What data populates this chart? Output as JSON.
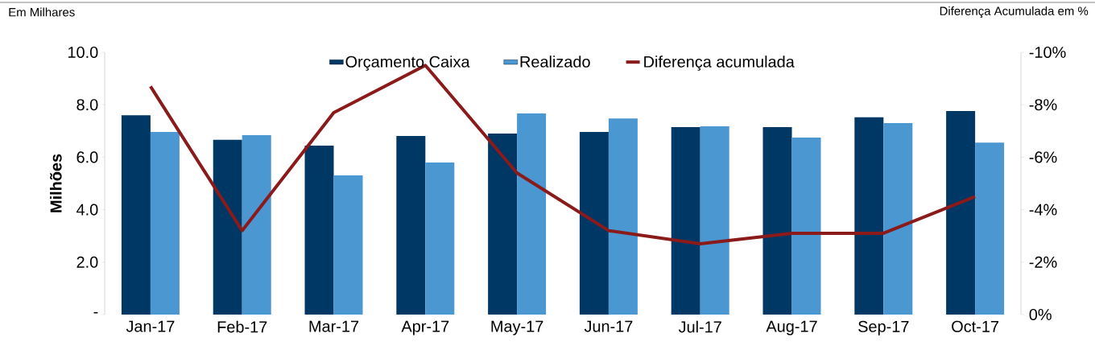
{
  "chart_data": {
    "type": "bar",
    "categories": [
      "Jan-17",
      "Feb-17",
      "Mar-17",
      "Apr-17",
      "May-17",
      "Jun-17",
      "Jul-17",
      "Aug-17",
      "Sep-17",
      "Oct-17"
    ],
    "series": [
      {
        "name": "Orçamento Caixa",
        "color": "#003865",
        "values": [
          7.6,
          6.66,
          6.44,
          6.81,
          6.9,
          6.96,
          7.15,
          7.15,
          7.52,
          7.76
        ]
      },
      {
        "name": "Realizado",
        "color": "#4a97d2",
        "values": [
          6.96,
          6.84,
          5.31,
          5.8,
          7.67,
          7.48,
          7.18,
          6.75,
          7.3,
          6.56
        ]
      },
      {
        "name": "Diferença acumulada",
        "type": "line",
        "axis": "y2",
        "color": "#8b1a1a",
        "values": [
          -8.7,
          -3.2,
          -7.7,
          -9.5,
          -5.4,
          -3.2,
          -2.7,
          -3.1,
          -3.1,
          -4.5
        ]
      }
    ],
    "ylabel": "Milhões",
    "ylim": [
      0,
      10
    ],
    "yticks": [
      {
        "value": 0,
        "label": "-"
      },
      {
        "value": 2,
        "label": "2.0"
      },
      {
        "value": 4,
        "label": "4.0"
      },
      {
        "value": 6,
        "label": "6.0"
      },
      {
        "value": 8,
        "label": "8.0"
      },
      {
        "value": 10,
        "label": "10.0"
      }
    ],
    "y2lim": [
      0,
      -10
    ],
    "y2ticks": [
      {
        "value": 0,
        "label": "0%"
      },
      {
        "value": -2,
        "label": "-2%"
      },
      {
        "value": -4,
        "label": "-4%"
      },
      {
        "value": -6,
        "label": "-6%"
      },
      {
        "value": -8,
        "label": "-8%"
      },
      {
        "value": -10,
        "label": "-10%"
      }
    ],
    "annotations": [
      "Em Milhares",
      "Diferença Acumulada em %"
    ],
    "legend": "top"
  }
}
